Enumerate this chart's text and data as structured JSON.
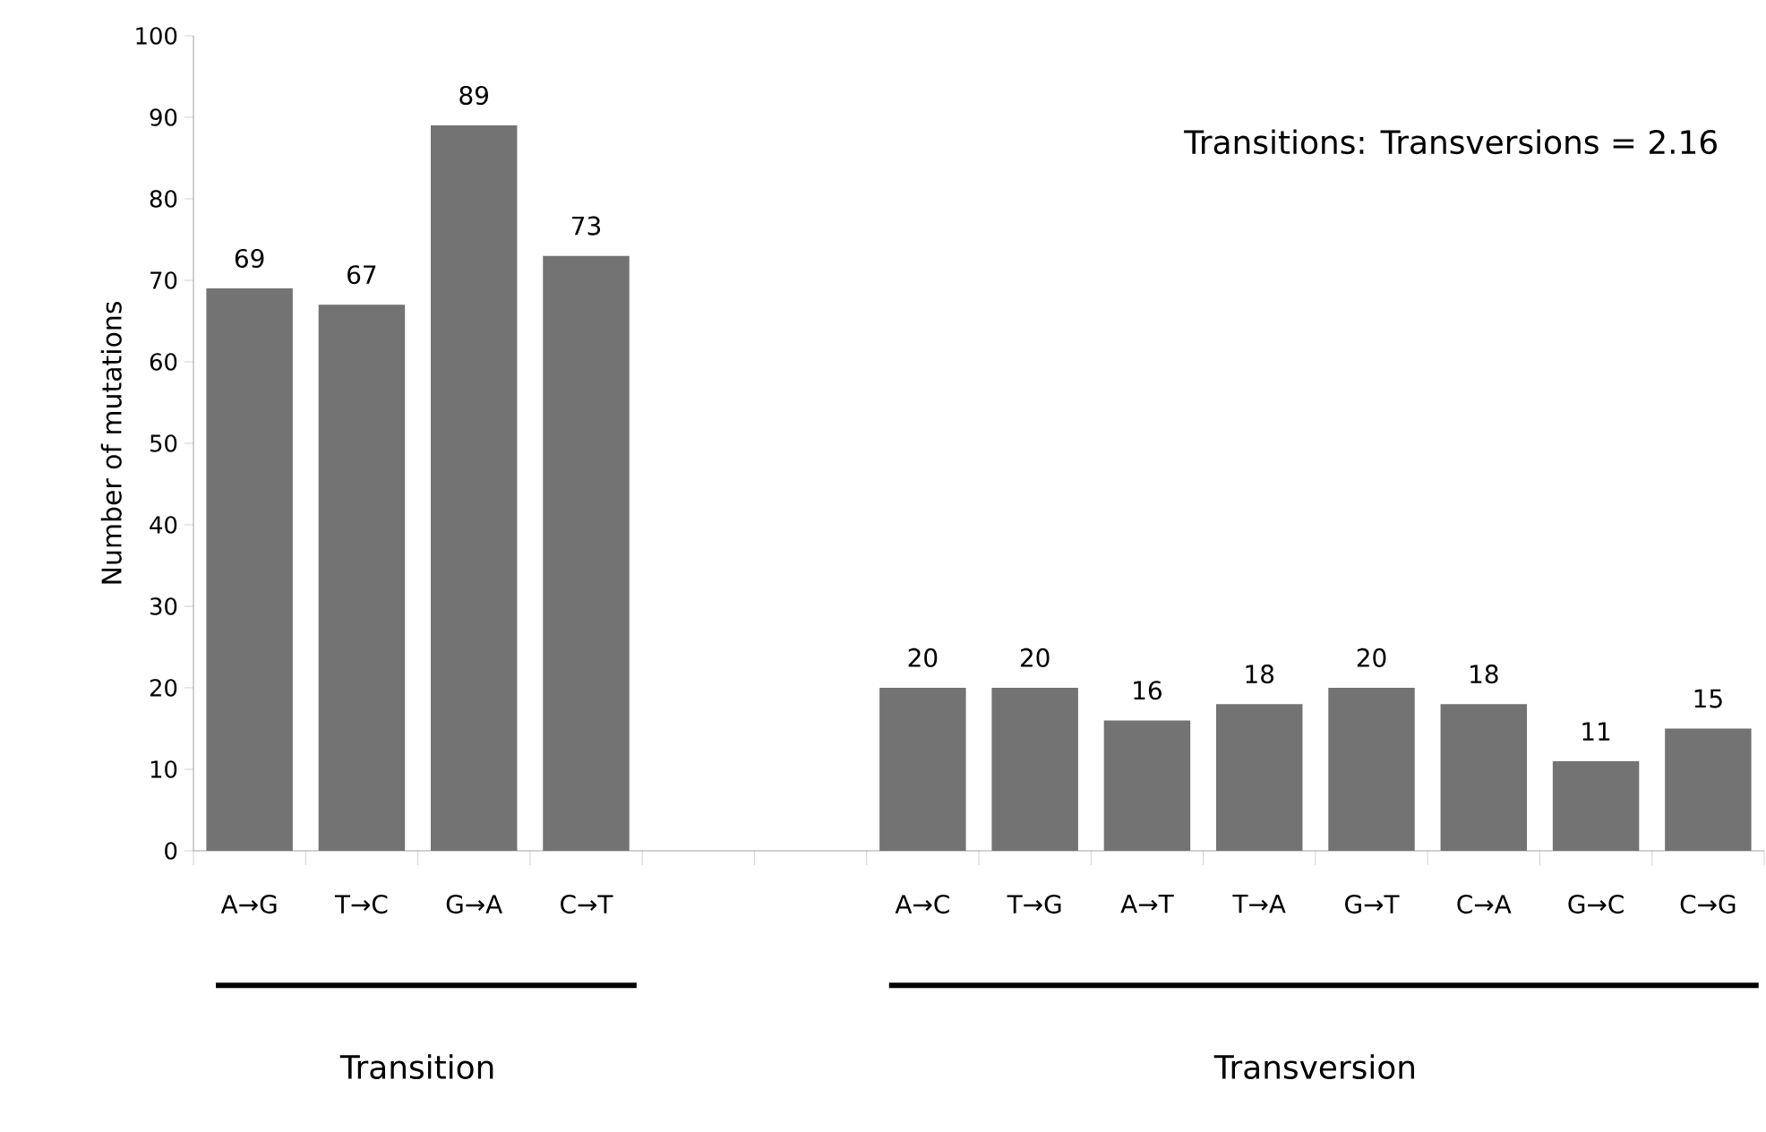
{
  "chart_data": {
    "type": "bar",
    "ylabel": "Number of mutations",
    "categories": [
      "A→G",
      "T→C",
      "G→A",
      "C→T",
      null,
      null,
      "A→C",
      "T→G",
      "A→T",
      "T→A",
      "G→T",
      "C→A",
      "G→C",
      "C→G"
    ],
    "values": [
      69,
      67,
      89,
      73,
      null,
      null,
      20,
      20,
      16,
      18,
      20,
      18,
      11,
      15
    ],
    "color": "#737373",
    "ylim": [
      0,
      100
    ],
    "yticks": [
      0,
      10,
      20,
      30,
      40,
      50,
      60,
      70,
      80,
      90,
      100
    ],
    "data_labels": true,
    "grid": false,
    "annotations": [
      "Transitions: Transversions = 2.16",
      "Transition",
      "Transversion"
    ]
  }
}
